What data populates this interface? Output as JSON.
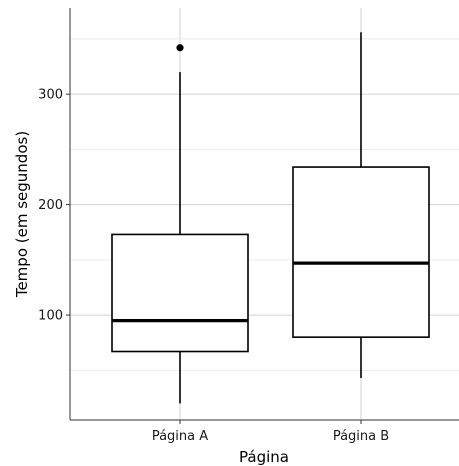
{
  "chart_data": {
    "type": "boxplot",
    "title": "",
    "xlabel": "Página",
    "ylabel": "Tempo (em segundos)",
    "categories": [
      "Página A",
      "Página B"
    ],
    "yticks": [
      100,
      200,
      300
    ],
    "ylim": [
      5,
      378
    ],
    "grid": true,
    "legend": "none",
    "boxes": [
      {
        "category": "Página A",
        "whisker_low": 20,
        "q1": 67,
        "median": 95,
        "q3": 173,
        "whisker_high": 320,
        "outliers": [
          342
        ]
      },
      {
        "category": "Página B",
        "whisker_low": 43,
        "q1": 80,
        "median": 147,
        "q3": 234,
        "whisker_high": 356,
        "outliers": []
      }
    ],
    "colors": {
      "panel_background": "#ffffff",
      "grid_major": "#d3d3d3",
      "grid_minor": "#ececec",
      "panel_border": "#333333",
      "box_fill": "#ffffff",
      "box_stroke": "#000000",
      "outlier": "#000000"
    }
  }
}
